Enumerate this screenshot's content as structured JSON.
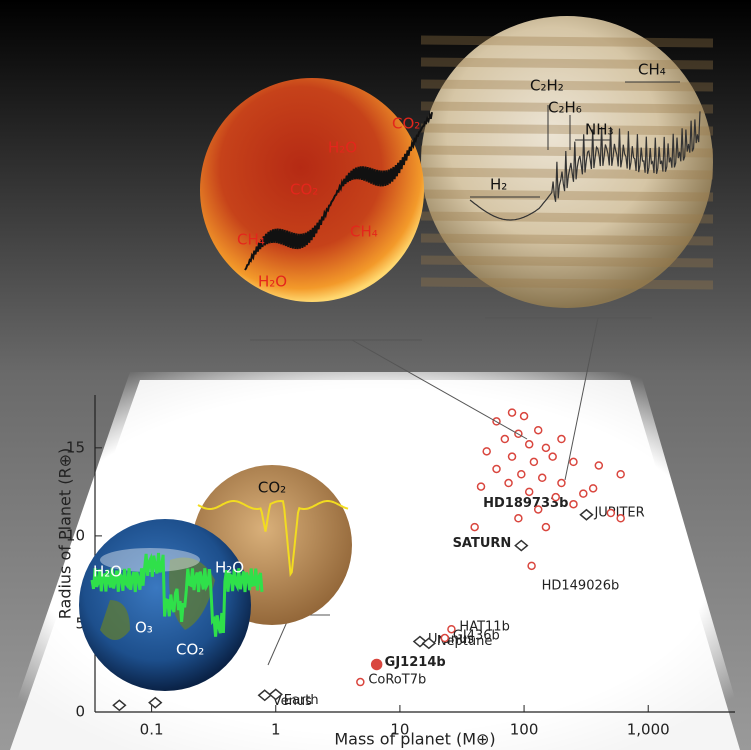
{
  "chart_data": {
    "type": "scatter",
    "xlabel": "Mass of planet (M⊕)",
    "ylabel": "Radius of Planet (R⊕)",
    "xscale": "log",
    "xlim": [
      0.035,
      5000
    ],
    "ylim": [
      0,
      18
    ],
    "xticks": [
      0.1,
      1,
      10,
      100,
      {
        "value": 1000,
        "label": "1,000"
      }
    ],
    "yticks": [
      0,
      5,
      10,
      15
    ],
    "series": [
      {
        "marker": "diamond",
        "color": "#333333",
        "x": [
          0.055,
          0.107,
          0.815,
          1,
          14.5,
          17.1,
          95,
          318
        ],
        "values": [
          0.38,
          0.53,
          0.95,
          1,
          4.0,
          3.9,
          9.45,
          11.2
        ],
        "labels": [
          null,
          null,
          "Venus",
          "Earth",
          "Uranus",
          "Neptune",
          "SATURN",
          "JUPITER"
        ]
      },
      {
        "marker": "circle",
        "color": "#d9463e",
        "x": [
          26,
          23,
          6.5,
          4.8,
          115,
          360,
          60,
          80,
          100,
          130,
          70,
          90,
          110,
          150,
          200,
          50,
          80,
          120,
          170,
          250,
          60,
          95,
          140,
          200,
          400,
          600,
          45,
          75,
          110,
          180,
          300,
          130,
          250,
          500,
          40,
          150,
          90,
          600
        ],
        "values": [
          4.7,
          4.2,
          2.7,
          1.7,
          8.3,
          12.7,
          16.5,
          17,
          16.8,
          16,
          15.5,
          15.8,
          15.2,
          15,
          15.5,
          14.8,
          14.5,
          14.2,
          14.5,
          14.2,
          13.8,
          13.5,
          13.3,
          13,
          14,
          13.5,
          12.8,
          13,
          12.5,
          12.2,
          12.4,
          11.5,
          11.8,
          11.3,
          10.5,
          10.5,
          11,
          11
        ],
        "labels": [
          "HAT11b",
          "GJ436b",
          "GJ1214b",
          "CoRoT7b",
          "HD149026b",
          "HD189733b",
          null,
          null,
          null,
          null,
          null,
          null,
          null,
          null,
          null,
          null,
          null,
          null,
          null,
          null,
          null,
          null,
          null,
          null,
          null,
          null,
          null,
          null,
          null,
          null,
          null,
          null,
          null,
          null,
          null,
          null,
          null,
          null
        ],
        "filled": [
          false,
          false,
          true,
          false,
          false,
          false,
          false,
          false,
          false,
          false,
          false,
          false,
          false,
          false,
          false,
          false,
          false,
          false,
          false,
          false,
          false,
          false,
          false,
          false,
          false,
          false,
          false,
          false,
          false,
          false,
          false,
          false,
          false,
          false,
          false,
          false,
          false,
          false
        ]
      }
    ]
  },
  "spectra": {
    "hot_jupiter": [
      "CO₂",
      "H₂O",
      "CO₂",
      "CH₄",
      "CH₄",
      "H₂O"
    ],
    "jupiter": [
      "C₂H₂",
      "C₂H₆",
      "NH₃",
      "CH₄",
      "H₂"
    ],
    "venus": [
      "CO₂"
    ],
    "earth": [
      "H₂O",
      "H₂O",
      "O₃",
      "CO₂"
    ]
  }
}
